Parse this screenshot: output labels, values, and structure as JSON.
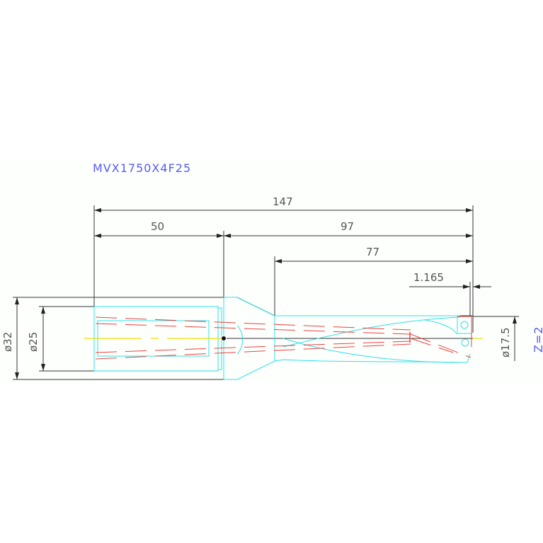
{
  "title": "MVX1750X4F25",
  "dimensions": {
    "overall_length": "147",
    "shank_length": "50",
    "body_length": "97",
    "flute_length": "77",
    "tip_offset": "1.165",
    "shank_outer_diameter": "ø32",
    "shank_diameter": "ø25",
    "cutting_diameter": "ø17.5",
    "flutes": "Z=2"
  },
  "colors": {
    "outline": "#333333",
    "tool_body": "#2fe0e8",
    "coolant_hidden": "#f04040",
    "centerline": "#f0e000",
    "title": "#5a5af0"
  }
}
